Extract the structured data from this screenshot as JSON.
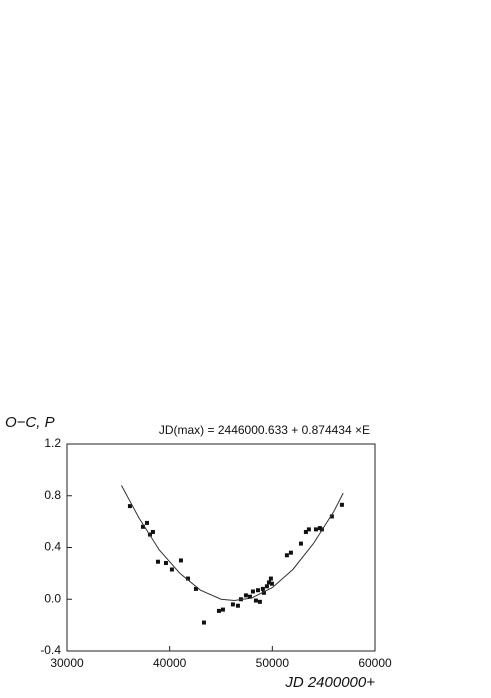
{
  "chart_data": {
    "type": "scatter",
    "title": "JD(max) = 2446000.633 + 0.874434 ×E",
    "y_label": "O−C, P",
    "x_label": "JD 2400000+",
    "xlim": [
      30000,
      60000
    ],
    "xticks": [
      30000,
      40000,
      50000,
      60000
    ],
    "ylim": [
      -0.4,
      1.2
    ],
    "yticks": [
      {
        "value": -0.4,
        "label": "-0.4"
      },
      {
        "value": 0,
        "label": "0.0"
      },
      0.4,
      0.8,
      1.2
    ],
    "series": [
      {
        "type": "scatter",
        "color": "#111111",
        "x": [
          36130,
          37400,
          37790,
          38080,
          38370,
          38860,
          39640,
          40220,
          41100,
          41780,
          42560,
          43340,
          44800,
          45190,
          46160,
          46650,
          46940,
          47430,
          47820,
          48110,
          48400,
          48600,
          48790,
          49080,
          49180,
          49470,
          49670,
          49860,
          49960,
          51420,
          51810,
          52790,
          53270,
          53560,
          54250,
          54630,
          54830,
          55800,
          56780
        ],
        "values": [
          0.72,
          0.56,
          0.59,
          0.5,
          0.52,
          0.29,
          0.28,
          0.23,
          0.3,
          0.16,
          0.08,
          -0.18,
          -0.09,
          -0.08,
          -0.04,
          -0.05,
          0.0,
          0.03,
          0.02,
          0.06,
          -0.01,
          0.07,
          -0.02,
          0.08,
          0.05,
          0.1,
          0.13,
          0.16,
          0.12,
          0.34,
          0.36,
          0.43,
          0.52,
          0.54,
          0.54,
          0.55,
          0.54,
          0.64,
          0.73
        ]
      },
      {
        "type": "line",
        "color": "#333333",
        "x": [
          35300,
          37000,
          39000,
          41000,
          43000,
          45000,
          46300,
          48000,
          50000,
          52000,
          54000,
          56000,
          56900
        ],
        "values": [
          0.88,
          0.63,
          0.38,
          0.2,
          0.07,
          0.0,
          -0.01,
          0.01,
          0.09,
          0.23,
          0.43,
          0.68,
          0.82
        ]
      }
    ]
  }
}
